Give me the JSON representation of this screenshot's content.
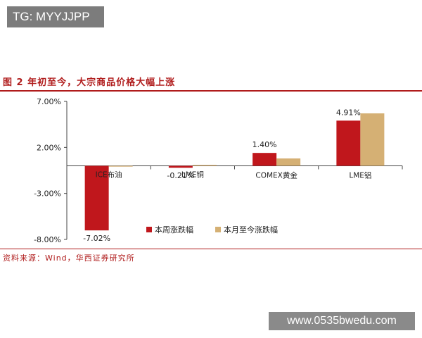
{
  "badge": {
    "text": "TG: MYYJJPP"
  },
  "figure": {
    "title": "图 2  年初至今，大宗商品价格大幅上涨",
    "source": "资料来源：Wind，华西证券研究所"
  },
  "watermark": {
    "text": "www.0535bwedu.com"
  },
  "colors": {
    "accent": "#b01c1c",
    "series1": "#c0171c",
    "series2": "#d5b074"
  },
  "chart_data": {
    "type": "bar",
    "title": "",
    "xlabel": "",
    "ylabel": "",
    "categories": [
      "ICE布油",
      "LME铜",
      "COMEX黄金",
      "LME铝"
    ],
    "series": [
      {
        "name": "本周涨跌幅",
        "values": [
          -7.02,
          -0.21,
          1.4,
          4.91
        ]
      },
      {
        "name": "本月至今涨跌幅",
        "values": [
          0.0,
          0.1,
          0.8,
          5.7
        ]
      }
    ],
    "data_labels": [
      "-7.02%",
      "-0.21%",
      "1.40%",
      "4.91%"
    ],
    "yticks": [
      "7.00%",
      "2.00%",
      "-3.00%",
      "-8.00%"
    ],
    "ytick_values": [
      7,
      2,
      -3,
      -8
    ],
    "ylim": [
      -8,
      7
    ],
    "grid": false,
    "legend_position": "bottom-right"
  }
}
